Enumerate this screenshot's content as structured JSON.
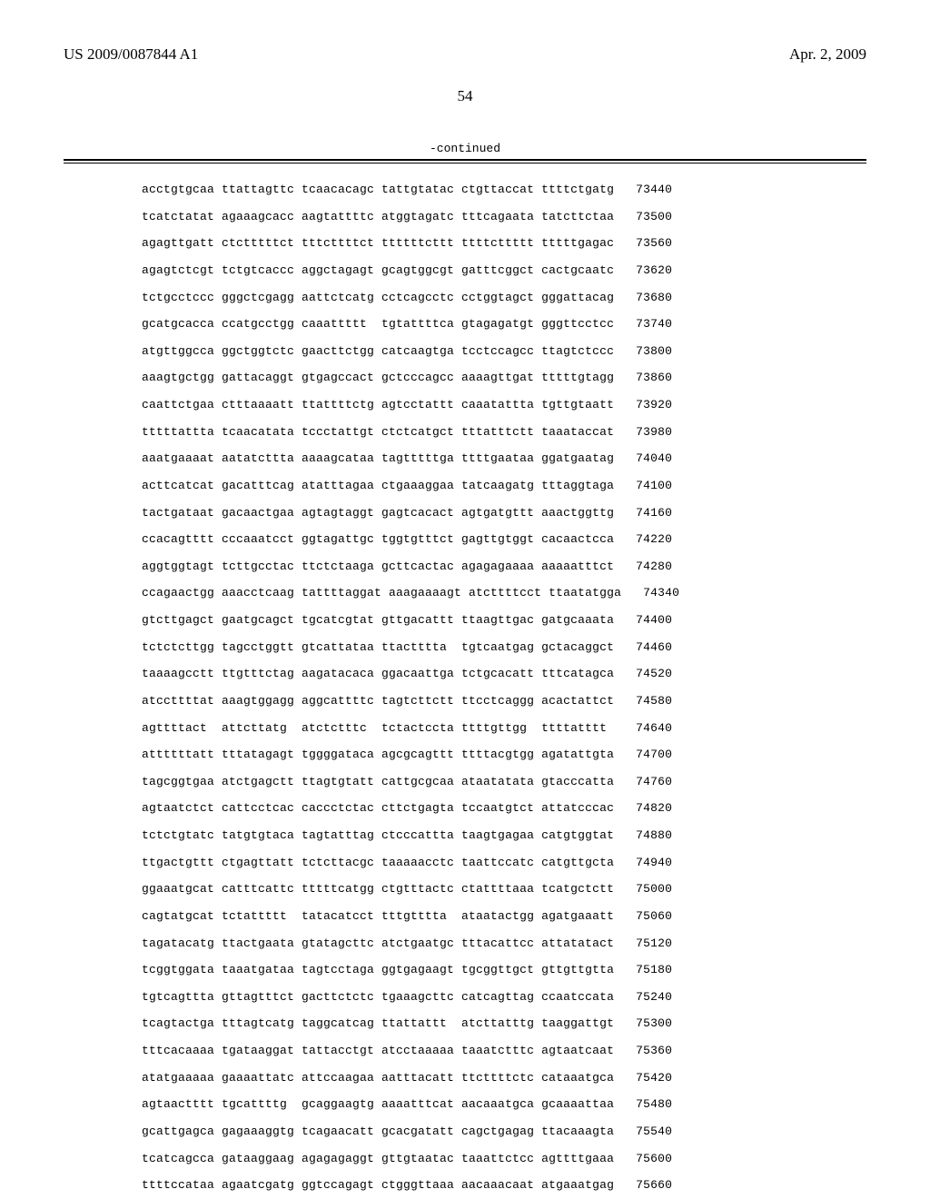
{
  "header": {
    "publication_number": "US 2009/0087844 A1",
    "publication_date": "Apr. 2, 2009"
  },
  "page_number": "54",
  "continued_label": "-continued",
  "sequence": {
    "rows": [
      {
        "g": [
          "acctgtgcaa",
          "ttattagttc",
          "tcaacacagc",
          "tattgtatac",
          "ctgttaccat",
          "ttttctgatg"
        ],
        "pos": "73440"
      },
      {
        "g": [
          "tcatctatat",
          "agaaagcacc",
          "aagtattttc",
          "atggtagatc",
          "tttcagaata",
          "tatcttctaa"
        ],
        "pos": "73500"
      },
      {
        "g": [
          "agagttgatt",
          "ctctttttct",
          "tttcttttct",
          "ttttttcttt",
          "ttttcttttt",
          "tttttgagac"
        ],
        "pos": "73560"
      },
      {
        "g": [
          "agagtctcgt",
          "tctgtcaccc",
          "aggctagagt",
          "gcagtggcgt",
          "gatttcggct",
          "cactgcaatc"
        ],
        "pos": "73620"
      },
      {
        "g": [
          "tctgcctccc",
          "gggctcgagg",
          "aattctcatg",
          "cctcagcctc",
          "cctggtagct",
          "gggattacag"
        ],
        "pos": "73680"
      },
      {
        "g": [
          "gcatgcacca",
          "ccatgcctgg",
          "caaattttt",
          "tgtattttca",
          "gtagagatgt",
          "gggttcctcc"
        ],
        "pos": "73740"
      },
      {
        "g": [
          "atgttggcca",
          "ggctggtctc",
          "gaacttctgg",
          "catcaagtga",
          "tcctccagcc",
          "ttagtctccc"
        ],
        "pos": "73800"
      },
      {
        "g": [
          "aaagtgctgg",
          "gattacaggt",
          "gtgagccact",
          "gctcccagcc",
          "aaaagttgat",
          "tttttgtagg"
        ],
        "pos": "73860"
      },
      {
        "g": [
          "caattctgaa",
          "ctttaaaatt",
          "ttattttctg",
          "agtcctattt",
          "caaatattta",
          "tgttgtaatt"
        ],
        "pos": "73920"
      },
      {
        "g": [
          "tttttattta",
          "tcaacatata",
          "tccctattgt",
          "ctctcatgct",
          "tttatttctt",
          "taaataccat"
        ],
        "pos": "73980"
      },
      {
        "g": [
          "aaatgaaaat",
          "aatatcttta",
          "aaaagcataa",
          "tagtttttga",
          "ttttgaataa",
          "ggatgaatag"
        ],
        "pos": "74040"
      },
      {
        "g": [
          "acttcatcat",
          "gacatttcag",
          "atatttagaa",
          "ctgaaaggaa",
          "tatcaagatg",
          "tttaggtaga"
        ],
        "pos": "74100"
      },
      {
        "g": [
          "tactgataat",
          "gacaactgaa",
          "agtagtaggt",
          "gagtcacact",
          "agtgatgttt",
          "aaactggttg"
        ],
        "pos": "74160"
      },
      {
        "g": [
          "ccacagtttt",
          "cccaaatcct",
          "ggtagattgc",
          "tggtgtttct",
          "gagttgtggt",
          "cacaactcca"
        ],
        "pos": "74220"
      },
      {
        "g": [
          "aggtggtagt",
          "tcttgcctac",
          "ttctctaaga",
          "gcttcactac",
          "agagagaaaa",
          "aaaaatttct"
        ],
        "pos": "74280"
      },
      {
        "g": [
          "ccagaactgg",
          "aaacctcaag",
          "tattttaggat",
          "aaagaaaagt",
          "atcttttcct",
          "ttaatatgga"
        ],
        "pos": "74340"
      },
      {
        "g": [
          "gtcttgagct",
          "gaatgcagct",
          "tgcatcgtat",
          "gttgacattt",
          "ttaagttgac",
          "gatgcaaata"
        ],
        "pos": "74400"
      },
      {
        "g": [
          "tctctcttgg",
          "tagcctggtt",
          "gtcattataa",
          "ttactttta",
          "tgtcaatgag",
          "gctacaggct"
        ],
        "pos": "74460"
      },
      {
        "g": [
          "taaaagcctt",
          "ttgtttctag",
          "aagatacaca",
          "ggacaattga",
          "tctgcacatt",
          "tttcatagca"
        ],
        "pos": "74520"
      },
      {
        "g": [
          "atccttttat",
          "aaagtggagg",
          "aggcattttc",
          "tagtcttctt",
          "ttcctcaggg",
          "acactattct"
        ],
        "pos": "74580"
      },
      {
        "g": [
          "agttttact",
          "attcttatg",
          "atctctttc",
          "tctactccta",
          "ttttgttgg",
          "ttttatttt"
        ],
        "pos": "74640"
      },
      {
        "g": [
          "attttttatt",
          "tttatagagt",
          "tggggataca",
          "agcgcagttt",
          "ttttacgtgg",
          "agatattgta"
        ],
        "pos": "74700"
      },
      {
        "g": [
          "tagcggtgaa",
          "atctgagctt",
          "ttagtgtatt",
          "cattgcgcaa",
          "ataatatata",
          "gtacccatta"
        ],
        "pos": "74760"
      },
      {
        "g": [
          "agtaatctct",
          "cattcctcac",
          "caccctctac",
          "cttctgagta",
          "tccaatgtct",
          "attatcccac"
        ],
        "pos": "74820"
      },
      {
        "g": [
          "tctctgtatc",
          "tatgtgtaca",
          "tagtatttag",
          "ctcccattta",
          "taagtgagaa",
          "catgtggtat"
        ],
        "pos": "74880"
      },
      {
        "g": [
          "ttgactgttt",
          "ctgagttatt",
          "tctcttacgc",
          "taaaaacctc",
          "taattccatc",
          "catgttgcta"
        ],
        "pos": "74940"
      },
      {
        "g": [
          "ggaaatgcat",
          "catttcattc",
          "tttttcatgg",
          "ctgtttactc",
          "ctattttaaa",
          "tcatgctctt"
        ],
        "pos": "75000"
      },
      {
        "g": [
          "cagtatgcat",
          "tctattttt",
          "tatacatcct",
          "tttgtttta",
          "ataatactgg",
          "agatgaaatt"
        ],
        "pos": "75060"
      },
      {
        "g": [
          "tagatacatg",
          "ttactgaata",
          "gtatagcttc",
          "atctgaatgc",
          "tttacattcc",
          "attatatact"
        ],
        "pos": "75120"
      },
      {
        "g": [
          "tcggtggata",
          "taaatgataa",
          "tagtcctaga",
          "ggtgagaagt",
          "tgcggttgct",
          "gttgttgtta"
        ],
        "pos": "75180"
      },
      {
        "g": [
          "tgtcagttta",
          "gttagtttct",
          "gacttctctc",
          "tgaaagcttc",
          "catcagttag",
          "ccaatccata"
        ],
        "pos": "75240"
      },
      {
        "g": [
          "tcagtactga",
          "tttagtcatg",
          "taggcatcag",
          "ttattattt",
          "atcttatttg",
          "taaggattgt"
        ],
        "pos": "75300"
      },
      {
        "g": [
          "tttcacaaaa",
          "tgataaggat",
          "tattacctgt",
          "atcctaaaaa",
          "taaatctttc",
          "agtaatcaat"
        ],
        "pos": "75360"
      },
      {
        "g": [
          "atatgaaaaa",
          "gaaaattatc",
          "attccaagaa",
          "aatttacatt",
          "ttcttttctc",
          "cataaatgca"
        ],
        "pos": "75420"
      },
      {
        "g": [
          "agtaactttt",
          "tgcattttg",
          "gcaggaagtg",
          "aaaatttcat",
          "aacaaatgca",
          "gcaaaattaa"
        ],
        "pos": "75480"
      },
      {
        "g": [
          "gcattgagca",
          "gagaaaggtg",
          "tcagaacatt",
          "gcacgatatt",
          "cagctgagag",
          "ttacaaagta"
        ],
        "pos": "75540"
      },
      {
        "g": [
          "tcatcagcca",
          "gataaggaag",
          "agagagaggt",
          "gttgtaatac",
          "taaattctcc",
          "agttttgaaa"
        ],
        "pos": "75600"
      },
      {
        "g": [
          "ttttccataa",
          "agaatcgatg",
          "ggtccagagt",
          "ctgggttaaa",
          "aacaaacaat",
          "atgaaatgag"
        ],
        "pos": "75660"
      }
    ]
  }
}
